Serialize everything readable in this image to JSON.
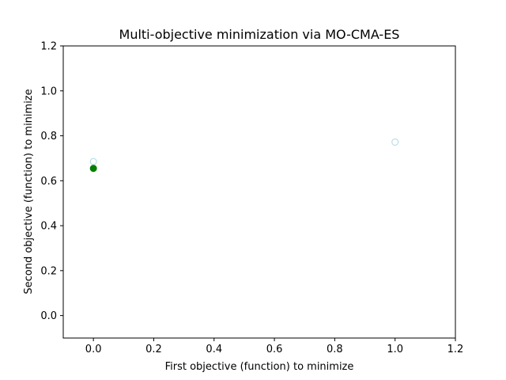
{
  "chart_data": {
    "type": "scatter",
    "title": "Multi-objective minimization via MO-CMA-ES",
    "xlabel": "First objective (function) to minimize",
    "ylabel": "Second objective (function) to minimize",
    "xlim": [
      -0.1,
      1.2
    ],
    "ylim": [
      -0.1,
      1.2
    ],
    "xticks": [
      "0.0",
      "0.2",
      "0.4",
      "0.6",
      "0.8",
      "1.0",
      "1.2"
    ],
    "yticks": [
      "0.0",
      "0.2",
      "0.4",
      "0.6",
      "0.8",
      "1.0",
      "1.2"
    ],
    "grid": false,
    "series": [
      {
        "marker": "open-circle",
        "color": "#add8e6",
        "points": [
          {
            "x": 0.0,
            "y": 0.685
          },
          {
            "x": 1.0,
            "y": 0.772
          }
        ]
      },
      {
        "marker": "filled-circle",
        "color": "#008000",
        "points": [
          {
            "x": 0.0,
            "y": 0.655
          }
        ]
      }
    ]
  }
}
